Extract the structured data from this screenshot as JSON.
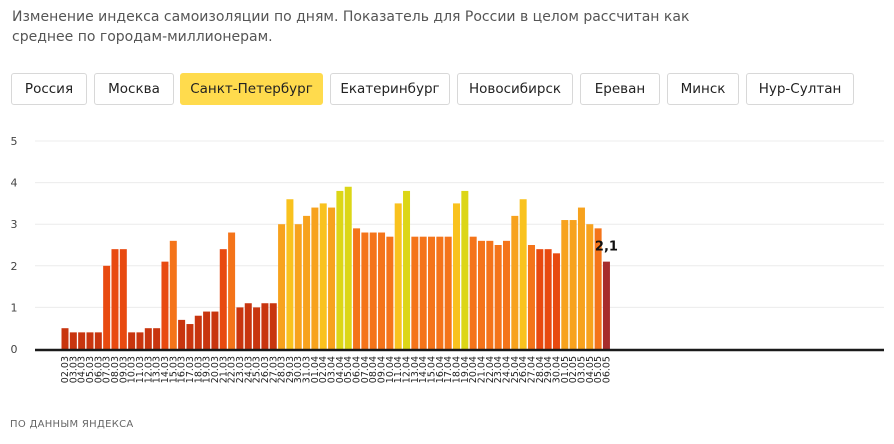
{
  "description": "Изменение индекса самоизоляции по дням. Показатель для России в целом рассчитан как среднее по городам-миллионерам.",
  "tabs": [
    {
      "label": "Россия",
      "active": false
    },
    {
      "label": "Москва",
      "active": false
    },
    {
      "label": "Санкт-Петербург",
      "active": true
    },
    {
      "label": "Екатеринбург",
      "active": false
    },
    {
      "label": "Новосибирск",
      "active": false
    },
    {
      "label": "Ереван",
      "active": false
    },
    {
      "label": "Минск",
      "active": false
    },
    {
      "label": "Нур-Султан",
      "active": false
    }
  ],
  "footer": "ПО ДАННЫМ ЯНДЕКСА",
  "chart_data": {
    "type": "bar",
    "ylim": [
      0,
      5
    ],
    "yticks": [
      "0",
      "1",
      "2",
      "3",
      "4",
      "5"
    ],
    "grid": true,
    "categories": [
      "02.03",
      "03.03",
      "04.03",
      "05.03",
      "06.03",
      "07.03",
      "08.03",
      "09.03",
      "10.03",
      "11.03",
      "12.03",
      "13.03",
      "14.03",
      "15.03",
      "16.03",
      "17.03",
      "18.03",
      "19.03",
      "20.03",
      "21.03",
      "22.03",
      "23.03",
      "24.03",
      "25.03",
      "26.03",
      "27.03",
      "28.03",
      "29.03",
      "30.03",
      "31.03",
      "01.04",
      "02.04",
      "03.04",
      "04.04",
      "05.04",
      "06.04",
      "07.04",
      "08.04",
      "09.04",
      "10.04",
      "11.04",
      "12.04",
      "13.04",
      "14.04",
      "15.04",
      "16.04",
      "17.04",
      "18.04",
      "19.04",
      "20.04",
      "21.04",
      "22.04",
      "23.04",
      "24.04",
      "25.04",
      "26.04",
      "27.04",
      "28.04",
      "29.04",
      "30.04",
      "01.05",
      "02.05",
      "03.05",
      "04.05",
      "05.05",
      "06.05"
    ],
    "values": [
      0.5,
      0.4,
      0.4,
      0.4,
      0.4,
      2.0,
      2.4,
      2.4,
      0.4,
      0.4,
      0.5,
      0.5,
      2.1,
      2.6,
      0.7,
      0.6,
      0.8,
      0.9,
      0.9,
      2.4,
      2.8,
      1.0,
      1.1,
      1.0,
      1.1,
      1.1,
      3.0,
      3.6,
      3.0,
      3.2,
      3.4,
      3.5,
      3.4,
      3.8,
      3.9,
      2.9,
      2.8,
      2.8,
      2.8,
      2.7,
      3.5,
      3.8,
      2.7,
      2.7,
      2.7,
      2.7,
      2.7,
      3.5,
      3.8,
      2.7,
      2.6,
      2.6,
      2.5,
      2.6,
      3.2,
      3.6,
      2.5,
      2.4,
      2.4,
      2.3,
      3.1,
      3.1,
      3.4,
      3.0,
      2.9,
      2.1
    ],
    "data_label": "2,1",
    "colors": {
      "dark_red": "#c8350f",
      "red_orange": "#e84a10",
      "orange": "#f4741a",
      "amber": "#f7a21d",
      "yellow": "#f9c21e",
      "yellow_green": "#dcd617",
      "maroon": "#a72c2c",
      "axis": "#1a1a1a",
      "grid": "#ececec"
    }
  }
}
